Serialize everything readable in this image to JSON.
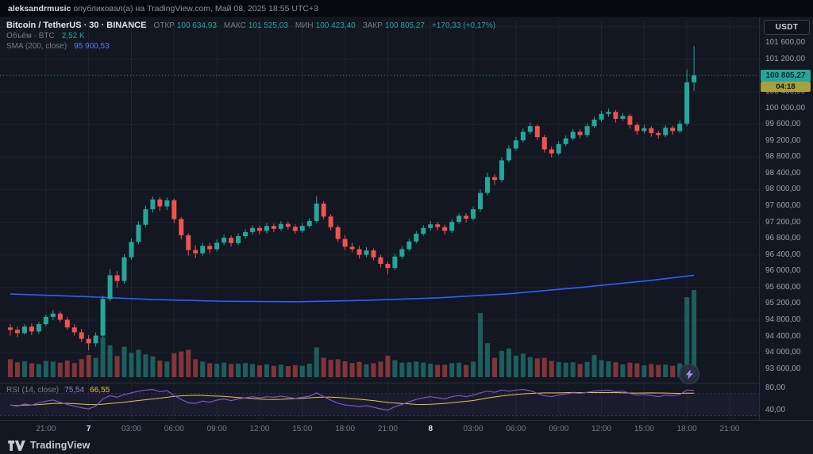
{
  "publish_bar": {
    "author": "aleksandrmusic",
    "text": "опубликовал(а) на TradingView.com, Май 08, 2025 18:55 UTC+3"
  },
  "toolbar": {
    "currency_button": "USDT"
  },
  "legend": {
    "symbol_title": "Bitcoin / TetherUS · 30 · BINANCE",
    "ohlc": [
      {
        "label": "ОТКР",
        "value": "100 634,93"
      },
      {
        "label": "МАКС",
        "value": "101 525,03"
      },
      {
        "label": "МИН",
        "value": "100 423,40"
      },
      {
        "label": "ЗАКР",
        "value": "100 805,27"
      }
    ],
    "change": "+170,33 (+0,17%)",
    "volume_label": "Объём · BTC",
    "volume_value": "2,52 K",
    "sma_label": "SMA (200, close)",
    "sma_value": "95 900,53",
    "rsi_label": "RSI (14, close)",
    "rsi_value": "75,54",
    "rsi_ma_value": "66,55"
  },
  "price_scale": {
    "last_price_label": "100 805,27",
    "countdown": "04:18"
  },
  "footer": {
    "brand": "TradingView"
  },
  "colors": {
    "background": "#131722",
    "up": "#26a69a",
    "down": "#ef5350",
    "sma": "#2962ff",
    "rsi": "#7e57c2",
    "rsi_ma": "#e0c84b",
    "grid": "rgba(240,243,250,0.055)",
    "separator": "#2a2e39",
    "last_price_label_bg": "#26a69a",
    "countdown_bg": "#a89f3d"
  },
  "chart_data": {
    "type": "candlestick",
    "title": "Bitcoin / TetherUS",
    "interval": "30",
    "exchange": "BINANCE",
    "quote_currency": "USDT",
    "price_axis": {
      "range": [
        93400,
        102150
      ],
      "label_step": 400,
      "grid_step": 800,
      "labels_from": 93600,
      "labels_to": 101600,
      "skip_label": 100800
    },
    "candles": [
      [
        94620,
        94700,
        94420,
        94560,
        520
      ],
      [
        94560,
        94640,
        94380,
        94480,
        430
      ],
      [
        94480,
        94700,
        94440,
        94640,
        460
      ],
      [
        94640,
        94720,
        94430,
        94520,
        400
      ],
      [
        94520,
        94760,
        94460,
        94700,
        380
      ],
      [
        94700,
        94930,
        94650,
        94880,
        470
      ],
      [
        94880,
        95050,
        94800,
        94960,
        450
      ],
      [
        94960,
        95010,
        94740,
        94810,
        420
      ],
      [
        94810,
        94880,
        94560,
        94620,
        480
      ],
      [
        94620,
        94700,
        94420,
        94500,
        410
      ],
      [
        94500,
        94580,
        94260,
        94340,
        520
      ],
      [
        94340,
        94430,
        94060,
        94230,
        640
      ],
      [
        94230,
        94500,
        94150,
        94420,
        560
      ],
      [
        94420,
        95400,
        94380,
        95320,
        1150
      ],
      [
        95320,
        96050,
        95260,
        95900,
        920
      ],
      [
        95900,
        96000,
        95600,
        95760,
        610
      ],
      [
        95760,
        96420,
        95700,
        96340,
        880
      ],
      [
        96340,
        96800,
        96280,
        96720,
        700
      ],
      [
        96720,
        97230,
        96660,
        97140,
        790
      ],
      [
        97140,
        97610,
        97080,
        97520,
        660
      ],
      [
        97520,
        97830,
        97440,
        97760,
        600
      ],
      [
        97760,
        97820,
        97480,
        97590,
        480
      ],
      [
        97590,
        97810,
        97500,
        97740,
        450
      ],
      [
        97740,
        97780,
        97180,
        97280,
        690
      ],
      [
        97280,
        97330,
        96780,
        96880,
        740
      ],
      [
        96880,
        96930,
        96380,
        96520,
        790
      ],
      [
        96520,
        96640,
        96320,
        96440,
        520
      ],
      [
        96440,
        96700,
        96380,
        96620,
        450
      ],
      [
        96620,
        96690,
        96440,
        96540,
        400
      ],
      [
        96540,
        96780,
        96480,
        96700,
        390
      ],
      [
        96700,
        96900,
        96640,
        96820,
        420
      ],
      [
        96820,
        96880,
        96600,
        96690,
        380
      ],
      [
        96690,
        96930,
        96640,
        96860,
        390
      ],
      [
        96860,
        97030,
        96800,
        96960,
        410
      ],
      [
        96960,
        97130,
        96900,
        97060,
        380
      ],
      [
        97060,
        97120,
        96900,
        96990,
        340
      ],
      [
        96990,
        97180,
        96930,
        97110,
        370
      ],
      [
        97110,
        97170,
        96960,
        97040,
        330
      ],
      [
        97040,
        97230,
        96990,
        97160,
        360
      ],
      [
        97160,
        97220,
        97020,
        97090,
        320
      ],
      [
        97090,
        97150,
        96920,
        96990,
        350
      ],
      [
        96990,
        97180,
        96940,
        97110,
        330
      ],
      [
        97110,
        97300,
        97060,
        97230,
        390
      ],
      [
        97230,
        97840,
        97180,
        97660,
        860
      ],
      [
        97660,
        97720,
        97280,
        97340,
        560
      ],
      [
        97340,
        97400,
        97000,
        97080,
        500
      ],
      [
        97080,
        97130,
        96720,
        96790,
        520
      ],
      [
        96790,
        96880,
        96520,
        96600,
        460
      ],
      [
        96600,
        96700,
        96460,
        96540,
        410
      ],
      [
        96540,
        96620,
        96310,
        96400,
        440
      ],
      [
        96400,
        96590,
        96340,
        96510,
        370
      ],
      [
        96510,
        96560,
        96260,
        96340,
        400
      ],
      [
        96340,
        96400,
        96090,
        96180,
        450
      ],
      [
        96180,
        96240,
        95920,
        96080,
        620
      ],
      [
        96080,
        96430,
        96020,
        96360,
        490
      ],
      [
        96360,
        96620,
        96300,
        96540,
        420
      ],
      [
        96540,
        96800,
        96490,
        96730,
        430
      ],
      [
        96730,
        96990,
        96680,
        96920,
        450
      ],
      [
        96920,
        97130,
        96870,
        97060,
        420
      ],
      [
        97060,
        97230,
        97000,
        97150,
        390
      ],
      [
        97150,
        97210,
        97000,
        97080,
        350
      ],
      [
        97080,
        97140,
        96900,
        96990,
        360
      ],
      [
        96990,
        97280,
        96940,
        97210,
        400
      ],
      [
        97210,
        97430,
        97160,
        97360,
        420
      ],
      [
        97360,
        97420,
        97190,
        97290,
        350
      ],
      [
        97290,
        97590,
        97240,
        97520,
        450
      ],
      [
        97520,
        98010,
        97460,
        97920,
        1850
      ],
      [
        97920,
        98420,
        97860,
        98310,
        980
      ],
      [
        98310,
        98380,
        98120,
        98240,
        560
      ],
      [
        98240,
        98800,
        98180,
        98720,
        760
      ],
      [
        98720,
        99090,
        98660,
        99010,
        830
      ],
      [
        99010,
        99300,
        98950,
        99210,
        620
      ],
      [
        99210,
        99500,
        99160,
        99420,
        680
      ],
      [
        99420,
        99650,
        99360,
        99560,
        580
      ],
      [
        99560,
        99600,
        99220,
        99290,
        540
      ],
      [
        99290,
        99340,
        98910,
        98990,
        560
      ],
      [
        98990,
        99060,
        98790,
        98890,
        470
      ],
      [
        98890,
        99190,
        98840,
        99120,
        440
      ],
      [
        99120,
        99330,
        99070,
        99260,
        420
      ],
      [
        99260,
        99490,
        99210,
        99420,
        430
      ],
      [
        99420,
        99480,
        99260,
        99340,
        380
      ],
      [
        99340,
        99630,
        99290,
        99560,
        440
      ],
      [
        99560,
        99790,
        99510,
        99720,
        640
      ],
      [
        99720,
        99930,
        99670,
        99860,
        490
      ],
      [
        99860,
        99990,
        99790,
        99910,
        460
      ],
      [
        99910,
        99960,
        99650,
        99740,
        430
      ],
      [
        99740,
        99880,
        99690,
        99810,
        370
      ],
      [
        99810,
        99860,
        99500,
        99590,
        420
      ],
      [
        99590,
        99650,
        99350,
        99440,
        400
      ],
      [
        99440,
        99590,
        99380,
        99510,
        340
      ],
      [
        99510,
        99560,
        99300,
        99390,
        380
      ],
      [
        99390,
        99450,
        99250,
        99340,
        350
      ],
      [
        99340,
        99580,
        99290,
        99520,
        360
      ],
      [
        99520,
        99570,
        99350,
        99440,
        330
      ],
      [
        99440,
        99700,
        99390,
        99620,
        400
      ],
      [
        99620,
        100950,
        99560,
        100634.93,
        2310
      ],
      [
        100634.93,
        101525.03,
        100423.4,
        100805.27,
        2520
      ]
    ],
    "sma200": {
      "period": 200,
      "source": "close",
      "points": [
        [
          0,
          95440
        ],
        [
          10,
          95380
        ],
        [
          20,
          95305
        ],
        [
          30,
          95262
        ],
        [
          40,
          95250
        ],
        [
          50,
          95285
        ],
        [
          60,
          95345
        ],
        [
          70,
          95445
        ],
        [
          80,
          95600
        ],
        [
          90,
          95775
        ],
        [
          96,
          95900.53
        ]
      ]
    },
    "rsi": {
      "period": 14,
      "ma_period": 14,
      "range": [
        25,
        85
      ],
      "bands": [
        70,
        30
      ],
      "axis_labels": [
        80,
        40
      ],
      "values": [
        49,
        47,
        51,
        49,
        53,
        56,
        58,
        54,
        50,
        47,
        44,
        42,
        47,
        60,
        66,
        63,
        68,
        71,
        74,
        76,
        77,
        73,
        75,
        66,
        59,
        53,
        52,
        56,
        54,
        58,
        60,
        57,
        60,
        62,
        64,
        62,
        64,
        63,
        65,
        63,
        61,
        63,
        65,
        71,
        64,
        58,
        52,
        49,
        48,
        46,
        48,
        45,
        42,
        40,
        46,
        50,
        55,
        59,
        62,
        64,
        62,
        60,
        64,
        66,
        64,
        67,
        71,
        74,
        72,
        76,
        74,
        76,
        77,
        75,
        70,
        66,
        64,
        67,
        69,
        71,
        70,
        72,
        74,
        75,
        76,
        73,
        74,
        70,
        67,
        68,
        66,
        64,
        67,
        66,
        68,
        76,
        75.54
      ]
    },
    "time_ticks": [
      {
        "i": 5,
        "label": "21:00"
      },
      {
        "i": 11,
        "label": "7",
        "strong": true
      },
      {
        "i": 17,
        "label": "03:00"
      },
      {
        "i": 23,
        "label": "06:00"
      },
      {
        "i": 29,
        "label": "09:00"
      },
      {
        "i": 35,
        "label": "12:00"
      },
      {
        "i": 41,
        "label": "15:00"
      },
      {
        "i": 47,
        "label": "18:00"
      },
      {
        "i": 53,
        "label": "21:00"
      },
      {
        "i": 59,
        "label": "8",
        "strong": true
      },
      {
        "i": 65,
        "label": "03:00"
      },
      {
        "i": 71,
        "label": "06:00"
      },
      {
        "i": 77,
        "label": "09:00"
      },
      {
        "i": 83,
        "label": "12:00"
      },
      {
        "i": 89,
        "label": "15:00"
      },
      {
        "i": 95,
        "label": "18:00"
      },
      {
        "i": 101,
        "label": "21:00"
      }
    ]
  }
}
